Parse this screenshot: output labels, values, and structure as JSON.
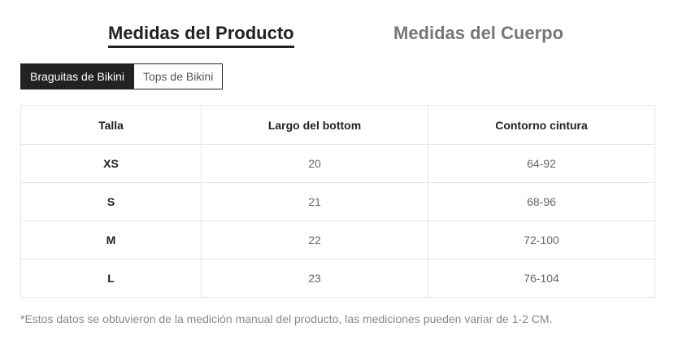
{
  "main_tabs": {
    "product_label": "Medidas del Producto",
    "body_label": "Medidas del Cuerpo"
  },
  "sub_tabs": {
    "bottoms_label": "Braguitas de Bikini",
    "tops_label": "Tops de Bikini"
  },
  "table": {
    "headers": [
      "Talla",
      "Largo del bottom",
      "Contorno cintura"
    ],
    "rows": [
      [
        "XS",
        "20",
        "64-92"
      ],
      [
        "S",
        "21",
        "68-96"
      ],
      [
        "M",
        "22",
        "72-100"
      ],
      [
        "L",
        "23",
        "76-104"
      ]
    ]
  },
  "footnote": "*Estos datos se obtuvieron de la medición manual del producto, las mediciones pueden variar de 1-2 CM."
}
